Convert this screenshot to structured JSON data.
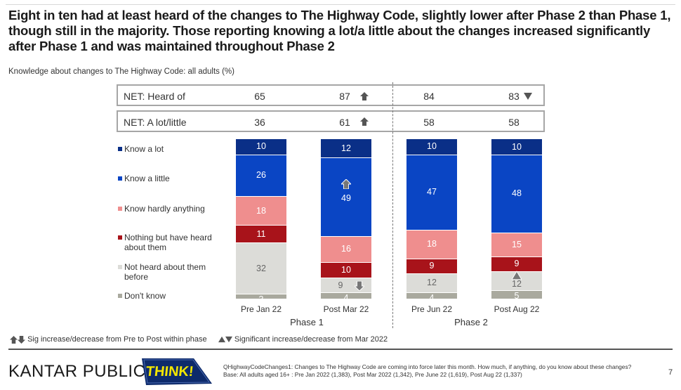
{
  "title": "Eight in ten had at least heard of the changes to The Highway Code, slightly lower after Phase 2 than Phase 1, though still in the majority. Those reporting knowing a lot/a little about the changes increased significantly after Phase 1 and was maintained throughout Phase 2",
  "subtitle": "Knowledge about changes to The Highway Code: all adults (%)",
  "net_rows": [
    {
      "label": "NET: Heard of",
      "values": [
        "65",
        "87",
        "84",
        "83"
      ],
      "markers": [
        "",
        "sig-up-arrow",
        "",
        "sig-down-triangle"
      ]
    },
    {
      "label": "NET: A lot/little",
      "values": [
        "36",
        "61",
        "58",
        "58"
      ],
      "markers": [
        "",
        "sig-up-arrow",
        "",
        ""
      ]
    }
  ],
  "chart_data": {
    "type": "bar",
    "stacked": true,
    "orientation": "vertical",
    "title": "Knowledge about changes to The Highway Code: all adults (%)",
    "xlabel": "",
    "ylabel": "%",
    "ylim": [
      0,
      100
    ],
    "categories": [
      "Pre Jan 22",
      "Post Mar 22",
      "Pre Jun 22",
      "Post Aug 22"
    ],
    "groups": [
      {
        "name": "Phase 1",
        "categories": [
          "Pre Jan 22",
          "Post Mar 22"
        ]
      },
      {
        "name": "Phase 2",
        "categories": [
          "Pre Jun 22",
          "Post Aug 22"
        ]
      }
    ],
    "series": [
      {
        "name": "Know a lot",
        "color": "#0a2f87",
        "label_color": "#ffffff",
        "values": [
          10,
          12,
          10,
          10
        ]
      },
      {
        "name": "Know a little",
        "color": "#0a45c4",
        "label_color": "#ffffff",
        "values": [
          26,
          49,
          47,
          48
        ]
      },
      {
        "name": "Know hardly anything",
        "color": "#ef8e8e",
        "label_color": "#ffffff",
        "values": [
          18,
          16,
          18,
          15
        ]
      },
      {
        "name": "Nothing but have heard about them",
        "color": "#a8131a",
        "label_color": "#ffffff",
        "values": [
          11,
          10,
          9,
          9
        ]
      },
      {
        "name": "Not heard about them before",
        "color": "#dcdcd8",
        "label_color": "#666666",
        "values": [
          32,
          9,
          12,
          12
        ]
      },
      {
        "name": "Don't know",
        "color": "#a9a99e",
        "label_color": "#ffffff",
        "values": [
          3,
          4,
          4,
          5
        ]
      }
    ],
    "significance_markers": [
      {
        "category": "Post Mar 22",
        "series": "Know a little",
        "type": "sig-increase-within-phase"
      },
      {
        "category": "Post Mar 22",
        "series": "Not heard about them before",
        "type": "sig-decrease-within-phase"
      },
      {
        "category": "Post Aug 22",
        "series": "Not heard about them before",
        "type": "sig-increase-from-mar-2022"
      }
    ],
    "legend": "left"
  },
  "legend_labels": [
    "Know a lot",
    "Know a little",
    "Know hardly anything",
    "Nothing but have heard about them",
    "Not heard about them before",
    "Don't know"
  ],
  "phase_labels": [
    "Phase 1",
    "Phase 2"
  ],
  "sig_key": {
    "within_phase": "Sig increase/decrease from Pre to Post within phase",
    "from_march": "Significant increase/decrease from Mar 2022"
  },
  "footer": {
    "brand": "KANTAR PUBLIC",
    "logo_text": "THINK!",
    "question": "QHighwayCodeChanges1: Changes to The Highway Code are coming into force later this month. How much, if anything, do you know about these changes?",
    "base": "Base: All adults aged 16+ : Pre Jan 2022 (1,383), Post Mar 2022 (1,342), Pre June 22 (1,619), Post Aug 22 (1,337)",
    "page_number": "7"
  }
}
